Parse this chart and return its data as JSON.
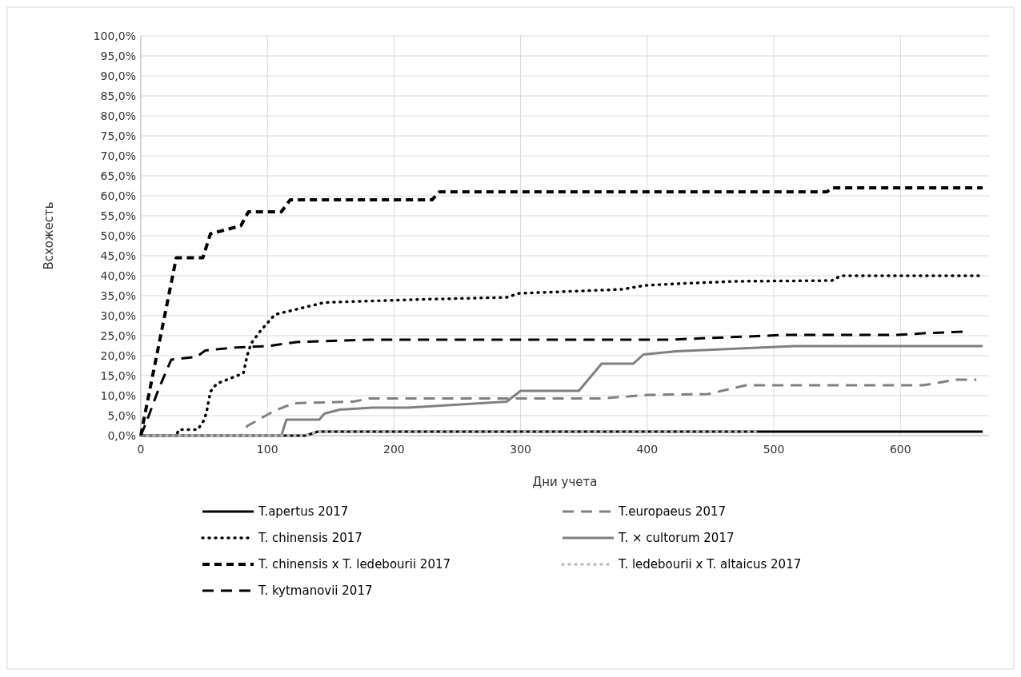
{
  "chart_data": {
    "type": "line",
    "xlabel": "Дни учета",
    "ylabel": "Всхожесть",
    "xlim": [
      0,
      670
    ],
    "xticks": [
      0,
      100,
      200,
      300,
      400,
      500,
      600
    ],
    "ylim": [
      0,
      100
    ],
    "yticks": [
      {
        "value": 0,
        "label": "0,0%"
      },
      {
        "value": 5,
        "label": "5,0%"
      },
      {
        "value": 10,
        "label": "10,0%"
      },
      {
        "value": 15,
        "label": "15,0%"
      },
      {
        "value": 20,
        "label": "20,0%"
      },
      {
        "value": 25,
        "label": "25,0%"
      },
      {
        "value": 30,
        "label": "30,0%"
      },
      {
        "value": 35,
        "label": "35,0%"
      },
      {
        "value": 40,
        "label": "40,0%"
      },
      {
        "value": 45,
        "label": "45,0%"
      },
      {
        "value": 50,
        "label": "50,0%"
      },
      {
        "value": 55,
        "label": "55,0%"
      },
      {
        "value": 60,
        "label": "60,0%"
      },
      {
        "value": 65,
        "label": "65,0%"
      },
      {
        "value": 70,
        "label": "70,0%"
      },
      {
        "value": 75,
        "label": "75,0%"
      },
      {
        "value": 80,
        "label": "80,0%"
      },
      {
        "value": 85,
        "label": "85,0%"
      },
      {
        "value": 90,
        "label": "90,0%"
      },
      {
        "value": 95,
        "label": "95,0%"
      },
      {
        "value": 100,
        "label": "100,0%"
      }
    ],
    "grid": true,
    "legend": "bottom",
    "marker": "none",
    "series": [
      {
        "name": "T.apertus 2017",
        "color": "#000000",
        "line_style": "solid",
        "x": [
          0,
          130,
          140,
          665
        ],
        "values": [
          0,
          0,
          1,
          1
        ]
      },
      {
        "name": "T.europaeus 2017",
        "color": "#808080",
        "line_style": "dashed",
        "x": [
          0,
          80,
          84,
          106,
          121,
          168,
          180,
          364,
          401,
          448,
          478,
          618,
          644,
          660
        ],
        "values": [
          0,
          0,
          2.4,
          6.3,
          8.1,
          8.5,
          9.3,
          9.3,
          10.2,
          10.4,
          12.6,
          12.6,
          14,
          14
        ]
      },
      {
        "name": "T. chinensis 2017",
        "color": "#000000",
        "line_style": "dotted",
        "x": [
          0,
          28,
          30,
          45,
          50,
          52,
          55,
          60,
          81,
          84,
          87,
          95,
          106,
          128,
          145,
          211,
          289,
          299,
          380,
          399,
          423,
          469,
          546,
          553,
          665
        ],
        "values": [
          0,
          0,
          1.5,
          1.5,
          3.9,
          6,
          11,
          13,
          15.6,
          20,
          23,
          26.4,
          30.3,
          32,
          33.3,
          34,
          34.6,
          35.6,
          36.6,
          37.6,
          38,
          38.6,
          38.8,
          40,
          40
        ]
      },
      {
        "name": "T. × cultorum 2017",
        "color": "#808080",
        "line_style": "solid",
        "x": [
          0,
          111,
          115,
          141,
          145,
          157,
          183,
          211,
          289,
          300,
          346,
          364,
          389,
          397,
          423,
          516,
          665
        ],
        "values": [
          0,
          0,
          4,
          4,
          5.5,
          6.5,
          7,
          7,
          8.5,
          11.2,
          11.2,
          18,
          18,
          20.3,
          21.1,
          22.4,
          22.4
        ]
      },
      {
        "name": "T. chinensis x T. ledebourii 2017",
        "color": "#000000",
        "line_style": "dashed",
        "x": [
          0,
          3,
          28,
          49,
          55,
          79,
          85,
          111,
          118,
          230,
          236,
          542,
          546,
          665
        ],
        "values": [
          0,
          5,
          44.5,
          44.5,
          50.5,
          52.5,
          56,
          56,
          59,
          59,
          61,
          61,
          62,
          62
        ]
      },
      {
        "name": "T. ledebourii x T. altaicus 2017",
        "color": "#bfbfbf",
        "line_style": "dotted",
        "x": [
          0,
          130,
          140,
          487
        ],
        "values": [
          0,
          0,
          1,
          1
        ]
      },
      {
        "name": "T. kytmanovii 2017",
        "color": "#000000",
        "line_style": "dashed",
        "x": [
          0,
          4.5,
          14,
          24,
          44,
          51,
          72,
          100,
          123,
          181,
          418,
          446,
          480,
          508,
          597,
          618,
          650
        ],
        "values": [
          0,
          3.5,
          11.6,
          19,
          19.7,
          21.3,
          22,
          22.4,
          23.4,
          24,
          24,
          24.4,
          24.8,
          25.2,
          25.2,
          25.6,
          26
        ]
      }
    ]
  }
}
